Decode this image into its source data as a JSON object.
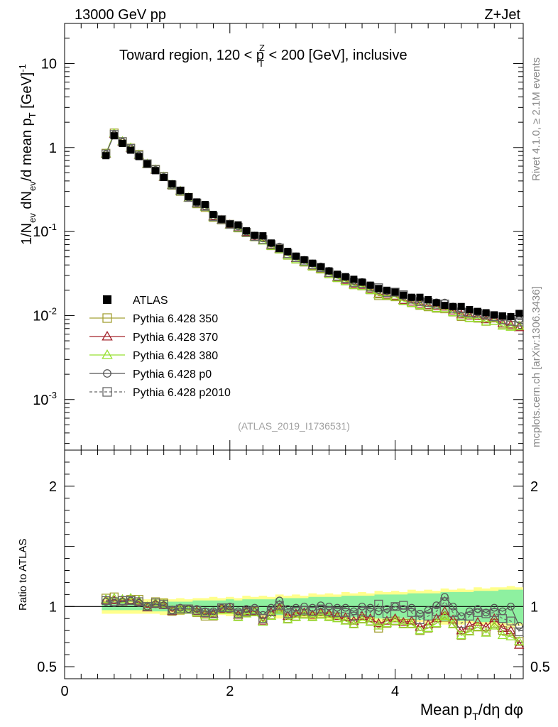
{
  "header": {
    "beam": "13000 GeV pp",
    "process": "Z+Jet",
    "region_title": "Toward region, 120 < p",
    "region_title_sup": "Z",
    "region_title_sub": "T",
    "region_title_tail": " < 200 [GeV], inclusive",
    "watermark": "(ATLAS_2019_I1736531)",
    "rivet_label": "Rivet 4.1.0, ≥ 2.1M events",
    "mcplots_label": "mcplots.cern.ch [arXiv:1306.3436]"
  },
  "axes": {
    "ylabel_main": "1/N_ev dN_ev/d mean p_T [GeV]^-1",
    "ylabel_ratio": "Ratio to ATLAS",
    "xlabel": "Mean p_T/dη dφ",
    "x_ticks": [
      "0",
      "2",
      "4"
    ],
    "main_y_ticks": [
      "10",
      "1",
      "10^-1",
      "10^-2",
      "10^-3"
    ],
    "ratio_y_ticks": [
      "2",
      "1",
      "0.5"
    ]
  },
  "legend": [
    {
      "label": "ATLAS",
      "color": "#000000",
      "marker": "filled-square"
    },
    {
      "label": "Pythia 6.428 350",
      "color": "#a4a035",
      "marker": "open-square"
    },
    {
      "label": "Pythia 6.428 370",
      "color": "#a3232b",
      "marker": "open-triangle"
    },
    {
      "label": "Pythia 6.428 380",
      "color": "#97e030",
      "marker": "open-triangle"
    },
    {
      "label": "Pythia 6.428 p0",
      "color": "#555555",
      "marker": "open-circle"
    },
    {
      "label": "Pythia 6.428 p2010",
      "color": "#666666",
      "marker": "open-square-dashed"
    }
  ],
  "chart_data": {
    "type": "line",
    "title": "Toward region, 120 < pT^Z < 200 [GeV], inclusive",
    "xlabel": "Mean pT/dη dφ",
    "ylabel": "1/Nev dNev/d mean pT [GeV]^-1",
    "xlim": [
      0,
      5.55
    ],
    "ylim_log": [
      0.00025,
      30
    ],
    "ratio_ylim": [
      0.4,
      2.3
    ],
    "x": [
      0.5,
      0.6,
      0.7,
      0.8,
      0.9,
      1.0,
      1.1,
      1.2,
      1.3,
      1.4,
      1.5,
      1.6,
      1.7,
      1.8,
      1.9,
      2.0,
      2.1,
      2.2,
      2.3,
      2.4,
      2.5,
      2.6,
      2.7,
      2.8,
      2.9,
      3.0,
      3.1,
      3.2,
      3.3,
      3.4,
      3.5,
      3.6,
      3.7,
      3.8,
      3.9,
      4.0,
      4.1,
      4.2,
      4.3,
      4.4,
      4.5,
      4.6,
      4.7,
      4.8,
      4.9,
      5.0,
      5.1,
      5.2,
      5.3,
      5.4,
      5.5
    ],
    "atlas": [
      0.8,
      1.38,
      1.12,
      0.93,
      0.78,
      0.64,
      0.53,
      0.44,
      0.37,
      0.31,
      0.26,
      0.225,
      0.21,
      0.16,
      0.14,
      0.123,
      0.12,
      0.102,
      0.09,
      0.089,
      0.073,
      0.063,
      0.058,
      0.051,
      0.046,
      0.042,
      0.038,
      0.034,
      0.031,
      0.029,
      0.027,
      0.025,
      0.023,
      0.021,
      0.02,
      0.019,
      0.0175,
      0.0165,
      0.0165,
      0.0155,
      0.0142,
      0.0132,
      0.0128,
      0.0128,
      0.0118,
      0.0112,
      0.0108,
      0.0102,
      0.0099,
      0.0097,
      0.0106
    ],
    "ratio_band_yellow": [
      0.94,
      1.06,
      0.94,
      1.06,
      0.94,
      1.06,
      0.94,
      1.07,
      0.94,
      1.07,
      0.94,
      1.07,
      0.93,
      1.08,
      0.93,
      1.08,
      0.93,
      1.09,
      0.92,
      1.09,
      0.92,
      1.1,
      0.91,
      1.1,
      0.91,
      1.11,
      0.9,
      1.11,
      0.9,
      1.12,
      0.89,
      1.12,
      0.89,
      1.13,
      0.88,
      1.13,
      0.88,
      1.14,
      0.87,
      1.14,
      0.87,
      1.15,
      0.86,
      1.15,
      0.86,
      1.16,
      0.85,
      1.16,
      0.84,
      1.17,
      0.84
    ],
    "ratio_band_green": [
      0.97,
      1.03,
      0.97,
      1.03,
      0.97,
      1.03,
      0.96,
      1.04,
      0.96,
      1.04,
      0.96,
      1.05,
      0.95,
      1.05,
      0.95,
      1.06,
      0.95,
      1.06,
      0.94,
      1.06,
      0.94,
      1.07,
      0.93,
      1.07,
      0.93,
      1.08,
      0.92,
      1.08,
      0.92,
      1.09,
      0.91,
      1.09,
      0.91,
      1.1,
      0.9,
      1.1,
      0.9,
      1.11,
      0.89,
      1.11,
      0.89,
      1.12,
      0.88,
      1.12,
      0.88,
      1.13,
      0.87,
      1.13,
      0.86,
      1.14,
      0.86
    ],
    "series": [
      {
        "name": "Pythia 6.428 350",
        "color": "#a4a035",
        "marker": "open-square",
        "dashed": false,
        "ratio": [
          1.07,
          1.08,
          1.05,
          1.06,
          1.06,
          1.0,
          1.04,
          1.03,
          0.96,
          0.97,
          0.98,
          0.95,
          0.92,
          0.92,
          0.98,
          0.99,
          0.92,
          0.95,
          0.96,
          0.9,
          0.93,
          0.98,
          0.9,
          0.92,
          0.94,
          0.92,
          0.94,
          0.92,
          0.91,
          0.89,
          0.86,
          0.9,
          0.88,
          0.82,
          0.86,
          0.88,
          0.86,
          0.86,
          0.8,
          0.82,
          0.86,
          0.91,
          0.86,
          0.76,
          0.8,
          0.83,
          0.79,
          0.86,
          0.8,
          0.79,
          0.71
        ]
      },
      {
        "name": "Pythia 6.428 370",
        "color": "#a3232b",
        "marker": "open-triangle",
        "dashed": false,
        "ratio": [
          1.05,
          1.05,
          1.04,
          1.05,
          1.04,
          0.99,
          1.02,
          1.01,
          0.96,
          0.98,
          0.97,
          0.96,
          0.94,
          0.94,
          0.98,
          0.98,
          0.93,
          0.96,
          0.96,
          0.88,
          0.95,
          0.99,
          0.92,
          0.94,
          0.95,
          0.93,
          0.95,
          0.94,
          0.92,
          0.91,
          0.88,
          0.92,
          0.9,
          0.86,
          0.88,
          0.9,
          0.87,
          0.88,
          0.83,
          0.85,
          0.9,
          0.96,
          0.89,
          0.8,
          0.84,
          0.87,
          0.83,
          0.9,
          0.82,
          0.8,
          0.68
        ]
      },
      {
        "name": "Pythia 6.428 380",
        "color": "#97e030",
        "marker": "open-triangle",
        "dashed": false,
        "ratio": [
          1.06,
          1.07,
          1.06,
          1.07,
          1.05,
          1.0,
          1.03,
          1.02,
          0.97,
          0.98,
          0.97,
          0.95,
          0.93,
          0.92,
          0.97,
          0.97,
          0.91,
          0.94,
          0.95,
          0.87,
          0.92,
          0.97,
          0.89,
          0.91,
          0.93,
          0.91,
          0.93,
          0.91,
          0.9,
          0.88,
          0.85,
          0.89,
          0.87,
          0.84,
          0.86,
          0.88,
          0.85,
          0.85,
          0.8,
          0.82,
          0.86,
          0.92,
          0.85,
          0.76,
          0.79,
          0.83,
          0.78,
          0.84,
          0.76,
          0.75,
          0.71
        ]
      },
      {
        "name": "Pythia 6.428 p0",
        "color": "#555555",
        "marker": "open-circle",
        "dashed": false,
        "ratio": [
          1.04,
          1.03,
          1.04,
          1.05,
          1.03,
          1.0,
          1.02,
          1.01,
          0.97,
          0.99,
          0.98,
          0.98,
          0.96,
          0.96,
          0.99,
          1.0,
          0.96,
          0.98,
          0.99,
          0.93,
          0.99,
          1.05,
          0.98,
          0.99,
          1.0,
          0.99,
          1.01,
          1.0,
          0.99,
          0.99,
          0.96,
          1.0,
          0.99,
          0.96,
          0.98,
          1.0,
          0.98,
          0.99,
          0.94,
          0.97,
          1.01,
          1.08,
          1.0,
          0.92,
          0.96,
          0.98,
          0.95,
          0.99,
          0.96,
          1.0,
          0.84
        ]
      },
      {
        "name": "Pythia 6.428 p2010",
        "color": "#666666",
        "marker": "open-square-dashed",
        "dashed": true,
        "ratio": [
          1.05,
          1.04,
          1.05,
          1.05,
          1.04,
          1.0,
          1.03,
          1.02,
          0.97,
          0.98,
          0.98,
          0.97,
          0.95,
          0.94,
          0.99,
          0.99,
          0.94,
          0.96,
          0.97,
          0.9,
          0.96,
          1.01,
          0.94,
          0.96,
          0.97,
          0.96,
          0.98,
          0.96,
          0.95,
          0.95,
          0.92,
          0.96,
          0.95,
          1.02,
          0.94,
          1.0,
          1.01,
          0.95,
          0.89,
          0.92,
          0.96,
          1.04,
          0.95,
          0.86,
          0.92,
          0.95,
          0.94,
          0.95,
          0.9,
          0.88,
          0.79
        ]
      }
    ]
  }
}
